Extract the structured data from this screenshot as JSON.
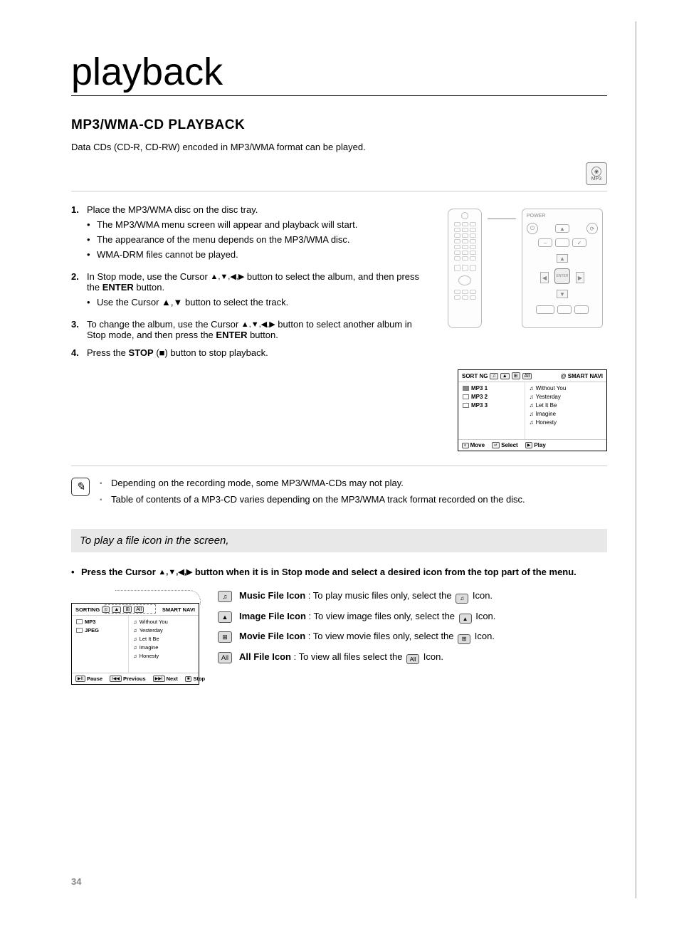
{
  "chapter_title": "playback",
  "section_title": "MP3/WMA-CD PLAYBACK",
  "intro": "Data CDs (CD-R, CD-RW) encoded in MP3/WMA format can be played.",
  "mp3_badge": "MP3",
  "steps": [
    {
      "num": "1.",
      "text": "Place the MP3/WMA disc on the disc tray.",
      "subs": [
        "The MP3/WMA menu screen will appear and playback will start.",
        "The appearance of the menu depends on the MP3/WMA disc.",
        "WMA-DRM files cannot be played."
      ]
    },
    {
      "num": "2.",
      "text_pre": "In Stop mode, use the Cursor ",
      "text_mid": " button to select the album, and then press the ",
      "enter": "ENTER",
      "text_post": " button.",
      "subs": [
        "Use the Cursor ▲,▼ button to select the track."
      ]
    },
    {
      "num": "3.",
      "text_pre": "To change the album, use the Cursor ",
      "text_mid": " button to select another album in Stop mode, and then press the ",
      "enter": "ENTER",
      "text_post": " button."
    },
    {
      "num": "4.",
      "text_pre": "Press the ",
      "stop": "STOP",
      "stop_sym": "(■)",
      "text_post": " button to stop playback."
    }
  ],
  "arrows4": "▲,▼,◀,▶",
  "remote": {
    "power": "POWER",
    "enter": "ENTER"
  },
  "osd1": {
    "sorting": "SORT NG",
    "smart": "@ SMART NAVI",
    "folders": [
      "MP3 1",
      "MP3 2",
      "MP3 3"
    ],
    "tracks": [
      "Without You",
      "Yesterday",
      "Let It Be",
      "Imagine",
      "Honesty"
    ],
    "footer": [
      {
        "key": "◐",
        "label": "Move"
      },
      {
        "key": "↵",
        "label": "Select"
      },
      {
        "key": "▶",
        "label": "Play"
      }
    ]
  },
  "notes": [
    "Depending on the recording mode, some MP3/WMA-CDs may not play.",
    "Table of contents of a MP3-CD varies depending on the MP3/WMA track format recorded on the disc."
  ],
  "sub_heading": "To play a file icon in the screen,",
  "icon_instruction_pre": "Press the Cursor ",
  "icon_instruction_post": " button when it is in Stop mode and select a desired icon from the top part of the menu.",
  "osd2": {
    "sorting": "SORTING",
    "smart": "SMART NAVI",
    "folders": [
      "MP3",
      "JPEG"
    ],
    "tracks": [
      "Without You",
      "Yesterday",
      "Let It Be",
      "Imagine",
      "Honesty"
    ],
    "footer": [
      {
        "key": "▶II",
        "label": "Pause"
      },
      {
        "key": "I◀◀",
        "label": "Previous"
      },
      {
        "key": "▶▶I",
        "label": "Next"
      },
      {
        "key": "■",
        "label": "Stop"
      }
    ]
  },
  "icon_defs": [
    {
      "glyph": "♫",
      "name": "Music File Icon",
      "desc": " : To play music files only, select the ",
      "tail": " Icon."
    },
    {
      "glyph": "▲",
      "name": "Image File Icon",
      "desc": " : To view image files only, select the ",
      "tail": " Icon."
    },
    {
      "glyph": "⊞",
      "name": "Movie File Icon",
      "desc": " : To view movie files only, select the ",
      "tail": " Icon."
    },
    {
      "glyph": "All",
      "name": "All File Icon",
      "desc": " : To view all files select the ",
      "tail": " Icon."
    }
  ],
  "page_number": "34"
}
